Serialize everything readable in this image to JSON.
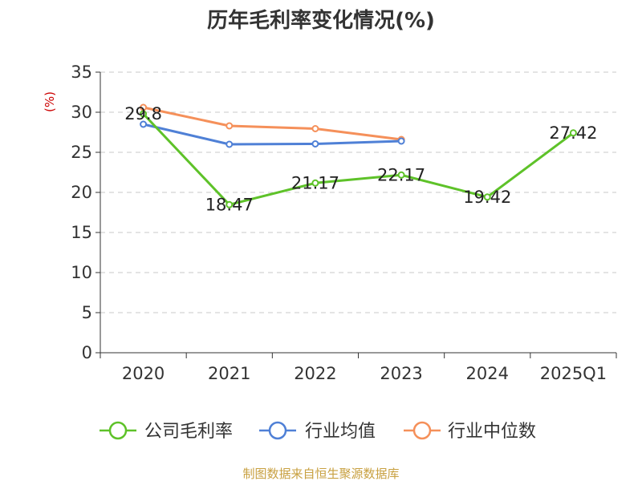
{
  "chart_data": {
    "type": "line",
    "title": "历年毛利率变化情况(%)",
    "ylabel": "(%)",
    "xlabel": "",
    "categories": [
      "2020",
      "2021",
      "2022",
      "2023",
      "2024",
      "2025Q1"
    ],
    "ylim": [
      0,
      35
    ],
    "yticks": [
      0,
      5,
      10,
      15,
      20,
      25,
      30,
      35
    ],
    "grid": true,
    "legend_position": "bottom",
    "series": [
      {
        "name": "公司毛利率",
        "color": "#5ec229",
        "values": [
          29.8,
          18.47,
          21.17,
          22.17,
          19.42,
          27.42
        ],
        "labels": [
          "29.8",
          "18.47",
          "21.17",
          "22.17",
          "19.42",
          "27.42"
        ]
      },
      {
        "name": "行业均值",
        "color": "#4f80d6",
        "values": [
          28.5,
          26.0,
          26.05,
          26.4,
          null,
          null
        ]
      },
      {
        "name": "行业中位数",
        "color": "#f5905a",
        "values": [
          30.6,
          28.3,
          27.95,
          26.6,
          null,
          null
        ]
      }
    ]
  },
  "source": "制图数据来自恒生聚源数据库"
}
